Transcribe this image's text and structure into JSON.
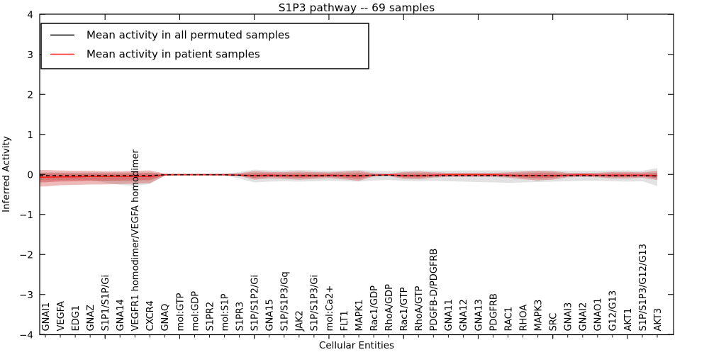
{
  "chart_data": {
    "type": "line",
    "title": "S1P3 pathway -- 69 samples",
    "xlabel": "Cellular Entities",
    "ylabel": "Inferred Activity",
    "ylim": [
      -4,
      4
    ],
    "yticks": [
      -4,
      -3,
      -2,
      -1,
      0,
      1,
      2,
      3,
      4
    ],
    "grid": false,
    "legend_position": "upper left",
    "categories": [
      "GNAI1",
      "VEGFA",
      "EDG1",
      "GNAZ",
      "S1P1/S1P/Gi",
      "GNA14",
      "VEGFR1 homodimer/VEGFA homodimer",
      "CXCR4",
      "GNAQ",
      "mol:GTP",
      "mol:GDP",
      "S1PR2",
      "mol:S1P",
      "S1PR3",
      "S1P/S1P2/Gi",
      "GNA15",
      "S1P/S1P3/Gq",
      "JAK2",
      "S1P/S1P3/Gi",
      "mol:Ca2+",
      "FLT1",
      "MAPK1",
      "Rac1/GDP",
      "RhoA/GDP",
      "Rac1/GTP",
      "RhoA/GTP",
      "PDGFB-D/PDGFRB",
      "GNA11",
      "GNA12",
      "GNA13",
      "PDGFRB",
      "RAC1",
      "RHOA",
      "MAPK3",
      "SRC",
      "GNAI3",
      "GNAI2",
      "GNAO1",
      "G12/G13",
      "AKT1",
      "S1P/S1P3/G12/G13",
      "AKT3"
    ],
    "series": [
      {
        "name": "Mean activity in all permuted samples",
        "color": "#000000",
        "values": [
          -0.03,
          -0.03,
          -0.03,
          -0.03,
          -0.03,
          -0.03,
          -0.03,
          -0.03,
          -0.01,
          -0.01,
          -0.01,
          -0.01,
          -0.01,
          -0.02,
          -0.03,
          -0.03,
          -0.03,
          -0.03,
          -0.03,
          -0.03,
          -0.03,
          -0.03,
          -0.02,
          -0.02,
          -0.03,
          -0.03,
          -0.03,
          -0.03,
          -0.03,
          -0.03,
          -0.03,
          -0.03,
          -0.03,
          -0.03,
          -0.03,
          -0.03,
          -0.03,
          -0.03,
          -0.03,
          -0.03,
          -0.03,
          -0.04
        ]
      },
      {
        "name": "Mean activity in patient samples",
        "color": "#ff1a1a",
        "values": [
          -0.07,
          -0.06,
          -0.06,
          -0.05,
          -0.05,
          -0.05,
          -0.05,
          -0.05,
          -0.01,
          -0.01,
          -0.01,
          -0.01,
          -0.01,
          -0.02,
          -0.03,
          -0.02,
          -0.03,
          -0.03,
          -0.03,
          -0.02,
          -0.03,
          -0.04,
          -0.02,
          -0.01,
          -0.03,
          -0.03,
          -0.02,
          -0.01,
          -0.01,
          -0.01,
          -0.01,
          -0.02,
          -0.03,
          -0.03,
          -0.03,
          -0.02,
          -0.01,
          -0.02,
          -0.02,
          -0.02,
          -0.02,
          -0.03
        ]
      }
    ],
    "bands": [
      {
        "name": "permuted-std-band",
        "color": "#969696",
        "upper": [
          0.05,
          0.05,
          0.05,
          0.05,
          0.05,
          0.05,
          0.05,
          0.05,
          0.02,
          0.02,
          0.02,
          0.02,
          0.02,
          0.06,
          0.12,
          0.1,
          0.1,
          0.11,
          0.1,
          0.09,
          0.1,
          0.11,
          0.09,
          0.08,
          0.09,
          0.1,
          0.09,
          0.09,
          0.1,
          0.1,
          0.1,
          0.1,
          0.1,
          0.1,
          0.1,
          0.09,
          0.09,
          0.09,
          0.1,
          0.1,
          0.09,
          0.16
        ],
        "lower": [
          -0.14,
          -0.14,
          -0.13,
          -0.14,
          -0.2,
          -0.26,
          -0.28,
          -0.24,
          -0.03,
          -0.02,
          -0.02,
          -0.02,
          -0.03,
          -0.1,
          -0.2,
          -0.18,
          -0.17,
          -0.18,
          -0.17,
          -0.16,
          -0.17,
          -0.18,
          -0.15,
          -0.14,
          -0.16,
          -0.17,
          -0.16,
          -0.17,
          -0.18,
          -0.19,
          -0.2,
          -0.21,
          -0.2,
          -0.19,
          -0.18,
          -0.17,
          -0.16,
          -0.16,
          -0.17,
          -0.18,
          -0.17,
          -0.29
        ]
      },
      {
        "name": "patient-std-band",
        "color": "#cc2929",
        "upper": [
          0.11,
          0.1,
          0.09,
          0.09,
          0.08,
          0.08,
          0.09,
          0.1,
          0.02,
          0.02,
          0.02,
          0.02,
          0.02,
          0.03,
          0.08,
          0.06,
          0.06,
          0.07,
          0.06,
          0.05,
          0.07,
          0.09,
          0.03,
          0.02,
          0.06,
          0.07,
          0.05,
          0.04,
          0.04,
          0.04,
          0.04,
          0.05,
          0.07,
          0.09,
          0.08,
          0.04,
          0.04,
          0.04,
          0.06,
          0.06,
          0.05,
          0.09
        ],
        "lower": [
          -0.3,
          -0.27,
          -0.26,
          -0.25,
          -0.25,
          -0.24,
          -0.23,
          -0.22,
          -0.03,
          -0.02,
          -0.02,
          -0.02,
          -0.02,
          -0.04,
          -0.13,
          -0.1,
          -0.11,
          -0.13,
          -0.11,
          -0.09,
          -0.12,
          -0.16,
          -0.05,
          -0.04,
          -0.11,
          -0.12,
          -0.08,
          -0.06,
          -0.06,
          -0.06,
          -0.06,
          -0.08,
          -0.12,
          -0.15,
          -0.13,
          -0.07,
          -0.06,
          -0.07,
          -0.1,
          -0.1,
          -0.08,
          -0.14
        ]
      }
    ]
  }
}
